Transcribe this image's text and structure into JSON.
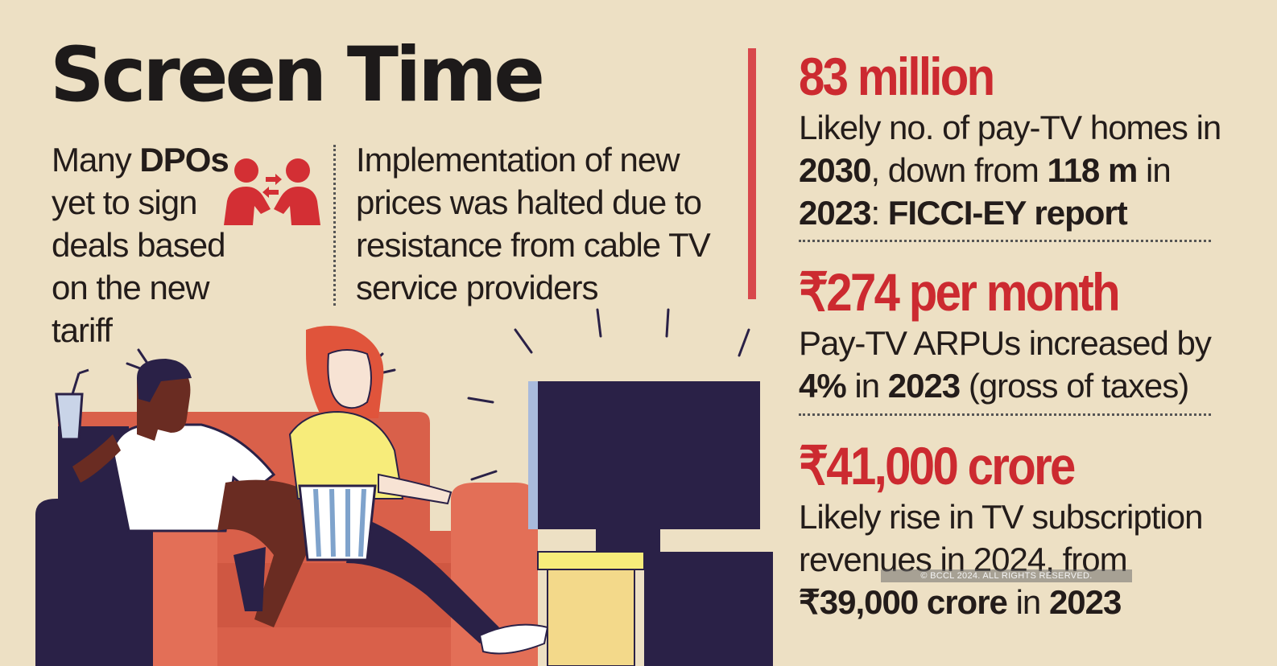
{
  "title": "Screen Time",
  "left_note": {
    "pre": "Many ",
    "bold": "DPOs",
    "post": " yet to sign deals based on the new tariff"
  },
  "right_note": "Implementation of new prices was halted due to resistance from cable TV service providers",
  "stats": [
    {
      "figure": "83 million",
      "desc_parts": [
        "Likely no. of pay-TV homes in ",
        "2030",
        ", down from ",
        "118 m",
        " in ",
        "2023",
        ": ",
        "FICCI-EY report"
      ]
    },
    {
      "figure": "₹274 per month",
      "desc_parts": [
        "Pay-TV ARPUs increased by ",
        "4%",
        " in ",
        "2023",
        " (gross of taxes)"
      ]
    },
    {
      "figure": "₹41,000 crore",
      "desc_parts": [
        "Likely rise in TV subscription revenues in 2024, from ",
        "₹39,000 crore",
        " in ",
        "2023"
      ]
    }
  ],
  "copyright": "© BCCL 2024. ALL RIGHTS RESERVED.",
  "colors": {
    "background": "#ede0c4",
    "accent_red": "#cc2a30",
    "sofa": "#d9604a",
    "tv": "#2a2147"
  },
  "icons": [
    "people-exchange-icon",
    "couple-watching-tv-illustration"
  ]
}
